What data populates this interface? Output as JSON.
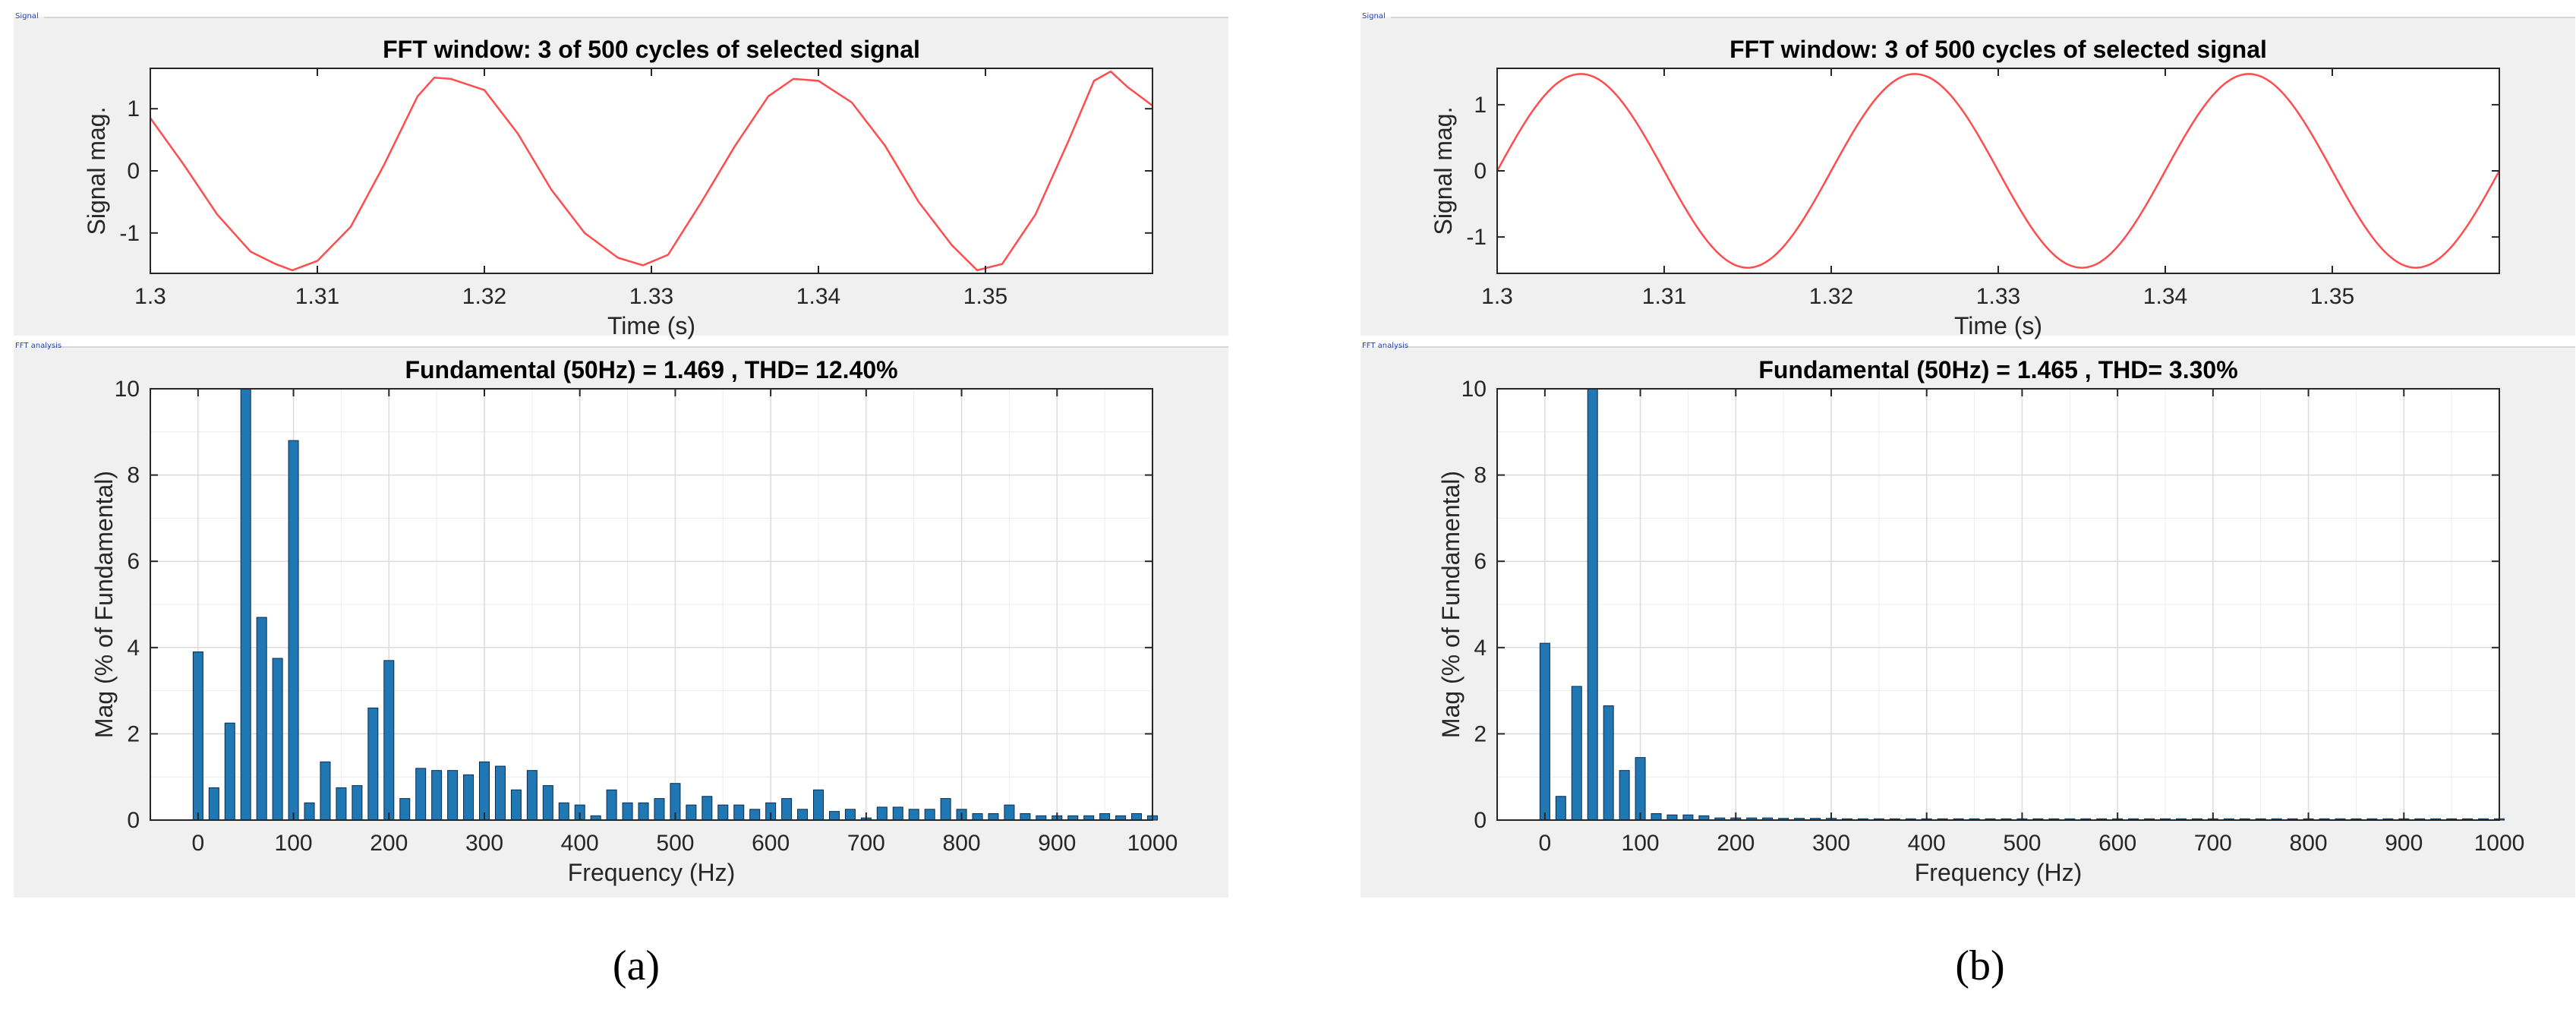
{
  "panels": {
    "a": {
      "label": "(a)",
      "signal_box_tag": "Signal",
      "fft_box_tag": "FFT analysis"
    },
    "b": {
      "label": "(b)",
      "signal_box_tag": "Signal",
      "fft_box_tag": "FFT analysis"
    }
  },
  "colors": {
    "signal_line": "#ff4d4d",
    "bars": "#1f77b4",
    "bar_edge": "#0b2a4a",
    "grid": "#dcdcdc",
    "box_bg": "#f0f0f0",
    "axes_bg": "#ffffff"
  },
  "chart_data": [
    {
      "id": "a-signal",
      "type": "line",
      "title": "FFT window: 3 of 500 cycles of selected signal",
      "xlabel": "Time (s)",
      "ylabel": "Signal mag.",
      "xlim": [
        1.3,
        1.36
      ],
      "ylim": [
        -1.65,
        1.65
      ],
      "xticks": [
        1.3,
        1.31,
        1.32,
        1.33,
        1.34,
        1.35
      ],
      "xtick_labels": [
        "1.3",
        "1.31",
        "1.32",
        "1.33",
        "1.34",
        "1.35"
      ],
      "yticks": [
        -1,
        0,
        1
      ],
      "ytick_labels": [
        "-1",
        "0",
        "1"
      ],
      "grid": false,
      "series": [
        {
          "x": [
            1.3,
            1.302,
            1.304,
            1.306,
            1.3075,
            1.3085,
            1.31,
            1.312,
            1.314,
            1.316,
            1.317,
            1.318,
            1.32,
            1.322,
            1.324,
            1.326,
            1.328,
            1.3295,
            1.331,
            1.333,
            1.335,
            1.337,
            1.3385,
            1.34,
            1.342,
            1.344,
            1.346,
            1.348,
            1.3495,
            1.351,
            1.353,
            1.355,
            1.3565,
            1.3575,
            1.3585,
            1.36
          ],
          "values": [
            0.85,
            0.1,
            -0.7,
            -1.3,
            -1.5,
            -1.6,
            -1.45,
            -0.9,
            0.1,
            1.2,
            1.5,
            1.48,
            1.3,
            0.6,
            -0.3,
            -1.0,
            -1.4,
            -1.52,
            -1.35,
            -0.5,
            0.4,
            1.2,
            1.48,
            1.45,
            1.1,
            0.4,
            -0.5,
            -1.2,
            -1.6,
            -1.5,
            -0.7,
            0.5,
            1.45,
            1.6,
            1.35,
            1.05
          ]
        }
      ]
    },
    {
      "id": "a-fft",
      "type": "bar",
      "title": "Fundamental (50Hz) = 1.469 , THD= 12.40%",
      "xlabel": "Frequency (Hz)",
      "ylabel": "Mag (% of Fundamental)",
      "xlim": [
        -50,
        1000
      ],
      "ylim": [
        0,
        10
      ],
      "xticks": [
        0,
        100,
        200,
        300,
        400,
        500,
        600,
        700,
        800,
        900,
        1000
      ],
      "xtick_labels": [
        "0",
        "100",
        "200",
        "300",
        "400",
        "500",
        "600",
        "700",
        "800",
        "900",
        "1000"
      ],
      "yticks": [
        0,
        2,
        4,
        6,
        8,
        10
      ],
      "ytick_labels": [
        "0",
        "2",
        "4",
        "6",
        "8",
        "10"
      ],
      "grid": true,
      "bin_width_hz": 16.67,
      "categories": [
        0,
        16.67,
        33.33,
        50,
        66.67,
        83.33,
        100,
        116.67,
        133.33,
        150,
        166.67,
        183.33,
        200,
        216.67,
        233.33,
        250,
        266.67,
        283.33,
        300,
        316.67,
        333.33,
        350,
        366.67,
        383.33,
        400,
        416.67,
        433.33,
        450,
        466.67,
        483.33,
        500,
        516.67,
        533.33,
        550,
        566.67,
        583.33,
        600,
        616.67,
        633.33,
        650,
        666.67,
        683.33,
        700,
        716.67,
        733.33,
        750,
        766.67,
        783.33,
        800,
        816.67,
        833.33,
        850,
        866.67,
        883.33,
        900,
        916.67,
        933.33,
        950,
        966.67,
        983.33,
        1000
      ],
      "values": [
        3.9,
        0.75,
        2.25,
        10.0,
        4.7,
        3.75,
        8.8,
        0.4,
        1.35,
        0.75,
        0.8,
        2.6,
        3.7,
        0.5,
        1.2,
        1.15,
        1.15,
        1.05,
        1.35,
        1.25,
        0.7,
        1.15,
        0.8,
        0.4,
        0.35,
        0.1,
        0.7,
        0.4,
        0.4,
        0.5,
        0.85,
        0.35,
        0.55,
        0.35,
        0.35,
        0.25,
        0.4,
        0.5,
        0.25,
        0.7,
        0.2,
        0.25,
        0.05,
        0.3,
        0.3,
        0.25,
        0.25,
        0.5,
        0.25,
        0.15,
        0.15,
        0.35,
        0.15,
        0.1,
        0.1,
        0.1,
        0.1,
        0.15,
        0.1,
        0.15,
        0.1
      ]
    },
    {
      "id": "b-signal",
      "type": "line",
      "title": "FFT window: 3 of 500 cycles of selected signal",
      "xlabel": "Time (s)",
      "ylabel": "Signal mag.",
      "xlim": [
        1.3,
        1.36
      ],
      "ylim": [
        -1.55,
        1.55
      ],
      "xticks": [
        1.3,
        1.31,
        1.32,
        1.33,
        1.34,
        1.35
      ],
      "xtick_labels": [
        "1.3",
        "1.31",
        "1.32",
        "1.33",
        "1.34",
        "1.35"
      ],
      "yticks": [
        -1,
        0,
        1
      ],
      "ytick_labels": [
        "-1",
        "0",
        "1"
      ],
      "grid": false,
      "series": [
        {
          "amplitude": 1.465,
          "frequency_hz": 50,
          "x_start": 1.3,
          "x_end": 1.36
        }
      ]
    },
    {
      "id": "b-fft",
      "type": "bar",
      "title": "Fundamental (50Hz) = 1.465 , THD= 3.30%",
      "xlabel": "Frequency (Hz)",
      "ylabel": "Mag (% of Fundamental)",
      "xlim": [
        -50,
        1000
      ],
      "ylim": [
        0,
        10
      ],
      "xticks": [
        0,
        100,
        200,
        300,
        400,
        500,
        600,
        700,
        800,
        900,
        1000
      ],
      "xtick_labels": [
        "0",
        "100",
        "200",
        "300",
        "400",
        "500",
        "600",
        "700",
        "800",
        "900",
        "1000"
      ],
      "yticks": [
        0,
        2,
        4,
        6,
        8,
        10
      ],
      "ytick_labels": [
        "0",
        "2",
        "4",
        "6",
        "8",
        "10"
      ],
      "grid": true,
      "bin_width_hz": 16.67,
      "categories": [
        0,
        16.67,
        33.33,
        50,
        66.67,
        83.33,
        100,
        116.67,
        133.33,
        150,
        166.67,
        183.33,
        200,
        216.67,
        233.33,
        250,
        266.67,
        283.33,
        300,
        316.67,
        333.33,
        350,
        366.67,
        383.33,
        400,
        416.67,
        433.33,
        450,
        466.67,
        483.33,
        500,
        516.67,
        533.33,
        550,
        566.67,
        583.33,
        600,
        616.67,
        633.33,
        650,
        666.67,
        683.33,
        700,
        716.67,
        733.33,
        750,
        766.67,
        783.33,
        800,
        816.67,
        833.33,
        850,
        866.67,
        883.33,
        900,
        916.67,
        933.33,
        950,
        966.67,
        983.33,
        1000
      ],
      "values": [
        4.1,
        0.55,
        3.1,
        10.0,
        2.65,
        1.15,
        1.45,
        0.15,
        0.12,
        0.12,
        0.1,
        0.05,
        0.05,
        0.05,
        0.05,
        0.04,
        0.04,
        0.04,
        0.04,
        0.03,
        0.03,
        0.03,
        0.03,
        0.03,
        0.03,
        0.03,
        0.03,
        0.03,
        0.03,
        0.03,
        0.03,
        0.03,
        0.03,
        0.03,
        0.03,
        0.03,
        0.03,
        0.03,
        0.03,
        0.03,
        0.03,
        0.03,
        0.03,
        0.03,
        0.03,
        0.03,
        0.03,
        0.03,
        0.03,
        0.03,
        0.03,
        0.03,
        0.03,
        0.03,
        0.03,
        0.03,
        0.03,
        0.03,
        0.03,
        0.03,
        0.03
      ]
    }
  ]
}
